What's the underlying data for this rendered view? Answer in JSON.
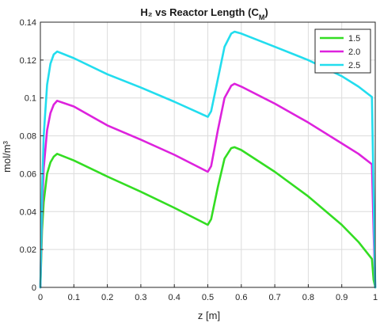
{
  "chart_data": {
    "type": "line",
    "title": "H₂ vs Reactor Length (C",
    "title_sub": "M",
    "title_close": ")",
    "xlabel": "z [m]",
    "ylabel": "mol/m³",
    "xlim": [
      0,
      1
    ],
    "ylim": [
      0,
      0.14
    ],
    "xticks": [
      0,
      0.1,
      0.2,
      0.3,
      0.4,
      0.5,
      0.6,
      0.7,
      0.8,
      0.9,
      1
    ],
    "yticks": [
      0,
      0.02,
      0.04,
      0.06,
      0.08,
      0.1,
      0.12,
      0.14
    ],
    "grid": true,
    "legend_position": "top-right",
    "series": [
      {
        "name": "1.5",
        "color": "#33dd22",
        "x": [
          0,
          0.005,
          0.01,
          0.02,
          0.03,
          0.04,
          0.05,
          0.1,
          0.2,
          0.3,
          0.4,
          0.5,
          0.51,
          0.53,
          0.55,
          0.57,
          0.58,
          0.6,
          0.7,
          0.8,
          0.9,
          0.95,
          0.99,
          0.995,
          1.0
        ],
        "y": [
          0,
          0.03,
          0.045,
          0.06,
          0.066,
          0.069,
          0.0705,
          0.067,
          0.0585,
          0.0505,
          0.042,
          0.033,
          0.036,
          0.053,
          0.068,
          0.0735,
          0.074,
          0.0725,
          0.061,
          0.048,
          0.033,
          0.024,
          0.015,
          0.004,
          0
        ]
      },
      {
        "name": "2.0",
        "color": "#dd22dd",
        "x": [
          0,
          0.005,
          0.01,
          0.02,
          0.03,
          0.04,
          0.05,
          0.1,
          0.2,
          0.3,
          0.4,
          0.5,
          0.51,
          0.53,
          0.55,
          0.57,
          0.58,
          0.6,
          0.7,
          0.8,
          0.9,
          0.95,
          0.99,
          0.995,
          1.0
        ],
        "y": [
          0,
          0.04,
          0.063,
          0.083,
          0.092,
          0.0965,
          0.0985,
          0.0955,
          0.0855,
          0.078,
          0.07,
          0.061,
          0.064,
          0.083,
          0.1,
          0.1065,
          0.1075,
          0.106,
          0.097,
          0.087,
          0.076,
          0.0705,
          0.065,
          0.03,
          0
        ]
      },
      {
        "name": "2.5",
        "color": "#22ddee",
        "x": [
          0,
          0.005,
          0.01,
          0.02,
          0.03,
          0.04,
          0.05,
          0.1,
          0.2,
          0.3,
          0.4,
          0.5,
          0.51,
          0.53,
          0.55,
          0.57,
          0.58,
          0.6,
          0.7,
          0.8,
          0.9,
          0.95,
          0.99,
          0.995,
          1.0
        ],
        "y": [
          0,
          0.05,
          0.08,
          0.107,
          0.118,
          0.123,
          0.1245,
          0.121,
          0.1125,
          0.1055,
          0.098,
          0.09,
          0.093,
          0.11,
          0.127,
          0.134,
          0.135,
          0.134,
          0.127,
          0.12,
          0.1115,
          0.106,
          0.1005,
          0.05,
          0
        ]
      }
    ]
  }
}
